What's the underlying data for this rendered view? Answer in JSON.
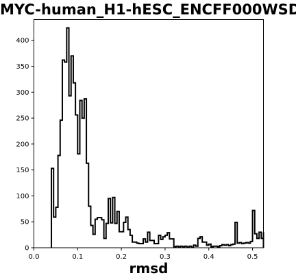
{
  "chart_data": {
    "type": "histogram",
    "title": "MYC-human_H1-hESC_ENCFF000WSD",
    "xlabel": "rmsd",
    "ylabel": "",
    "xlim": [
      0.0,
      0.525
    ],
    "ylim": [
      0,
      440
    ],
    "x_ticks": [
      0.0,
      0.1,
      0.2,
      0.3,
      0.4,
      0.5
    ],
    "x_tick_labels": [
      "0.0",
      "0.1",
      "0.2",
      "0.3",
      "0.4",
      "0.5"
    ],
    "y_ticks": [
      0,
      50,
      100,
      150,
      200,
      250,
      300,
      350,
      400
    ],
    "y_tick_labels": [
      "0",
      "50",
      "100",
      "150",
      "200",
      "250",
      "300",
      "350",
      "400"
    ],
    "grid": false,
    "bin_width": 0.005,
    "bin_start": 0.04,
    "counts": [
      153,
      59,
      78,
      178,
      246,
      362,
      358,
      424,
      293,
      370,
      318,
      256,
      181,
      284,
      250,
      287,
      163,
      80,
      43,
      26,
      55,
      58,
      58,
      54,
      18,
      47,
      95,
      48,
      97,
      47,
      70,
      31,
      31,
      49,
      59,
      35,
      24,
      11,
      11,
      9,
      8,
      8,
      17,
      11,
      30,
      14,
      14,
      8,
      8,
      24,
      16,
      21,
      24,
      29,
      17,
      17,
      2,
      3,
      2,
      3,
      2,
      3,
      1,
      3,
      1,
      5,
      3,
      18,
      21,
      11,
      11,
      5,
      7,
      2,
      3,
      3,
      2,
      4,
      6,
      5,
      6,
      4,
      6,
      7,
      49,
      9,
      10,
      8,
      9,
      10,
      9,
      12,
      72,
      27,
      18,
      30,
      18,
      30
    ]
  }
}
